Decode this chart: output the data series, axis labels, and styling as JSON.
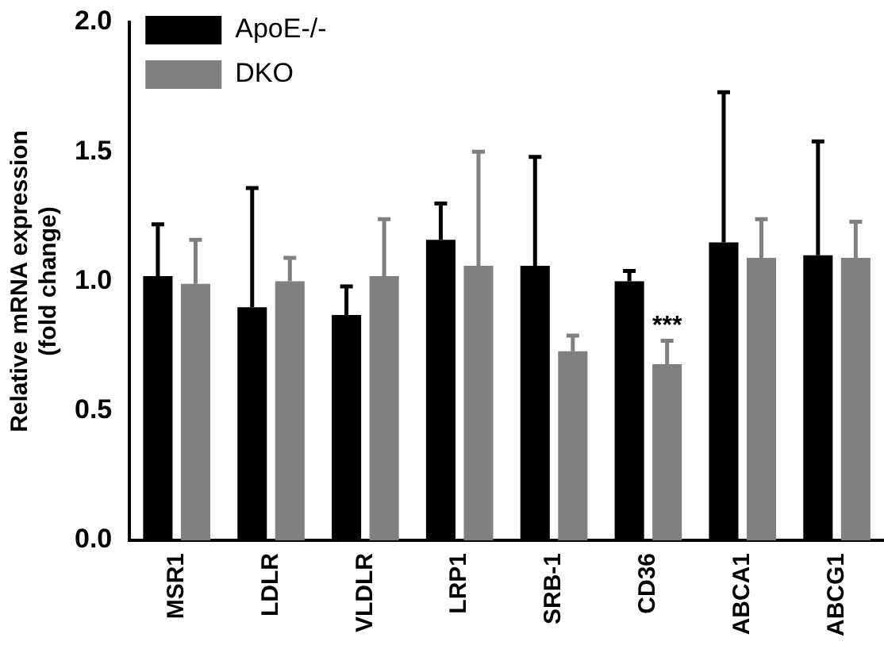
{
  "chart_data": {
    "type": "bar",
    "ylabel": "Relative mRNA expression\n(fold change)",
    "categories": [
      "MSR1",
      "LDLR",
      "VLDLR",
      "LRP1",
      "SRB-1",
      "CD36",
      "ABCA1",
      "ABCG1"
    ],
    "series": [
      {
        "name": "ApoE-/-",
        "color": "#000000",
        "values": [
          1.02,
          0.9,
          0.87,
          1.16,
          1.06,
          1.0,
          1.15,
          1.1
        ],
        "errors": [
          [
            1.02,
            1.22
          ],
          [
            0.9,
            1.36
          ],
          [
            0.87,
            0.98
          ],
          [
            1.16,
            1.3
          ],
          [
            1.06,
            1.48
          ],
          [
            1.0,
            1.04
          ],
          [
            1.15,
            1.73
          ],
          [
            1.1,
            1.54
          ]
        ]
      },
      {
        "name": "DKO",
        "color": "#808080",
        "values": [
          0.99,
          1.0,
          1.02,
          1.06,
          0.73,
          0.68,
          1.09,
          1.09
        ],
        "errors": [
          [
            0.99,
            1.16
          ],
          [
            1.0,
            1.09
          ],
          [
            1.02,
            1.24
          ],
          [
            1.06,
            1.5
          ],
          [
            0.73,
            0.79
          ],
          [
            0.68,
            0.77
          ],
          [
            1.09,
            1.24
          ],
          [
            1.09,
            1.23
          ]
        ]
      }
    ],
    "ylim": [
      0,
      2
    ],
    "yticks": [
      {
        "value": 0,
        "label": "0.0"
      },
      {
        "value": 0.5,
        "label": "0.5"
      },
      {
        "value": 1,
        "label": "1.0"
      },
      {
        "value": 1.5,
        "label": "1.5"
      },
      {
        "value": 2,
        "label": "2.0"
      }
    ],
    "annotations": [
      {
        "text": "***",
        "x": "CD36",
        "y": 0.79
      }
    ],
    "grid": false,
    "legend": "top left"
  }
}
